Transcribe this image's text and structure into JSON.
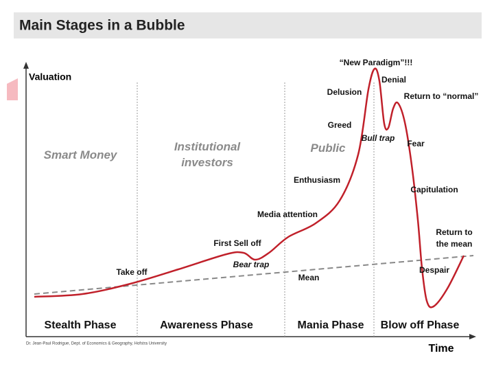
{
  "header": {
    "title": "Main Stages in a Bubble"
  },
  "axes": {
    "y_label": "Valuation",
    "x_label": "Time"
  },
  "groups": [
    {
      "lines": [
        "Smart Money"
      ]
    },
    {
      "lines": [
        "Institutional",
        "investors"
      ]
    },
    {
      "lines": [
        "Public"
      ]
    }
  ],
  "phases": [
    "Stealth Phase",
    "Awareness Phase",
    "Mania Phase",
    "Blow off Phase"
  ],
  "annotations": [
    {
      "lines": [
        "Take off"
      ]
    },
    {
      "lines": [
        "First Sell off"
      ]
    },
    {
      "lines": [
        "Bear trap"
      ]
    },
    {
      "lines": [
        "Media attention"
      ]
    },
    {
      "lines": [
        "Enthusiasm"
      ]
    },
    {
      "lines": [
        "Greed"
      ]
    },
    {
      "lines": [
        "Delusion"
      ]
    },
    {
      "lines": [
        "“New Paradigm”!!!"
      ]
    },
    {
      "lines": [
        "Denial"
      ]
    },
    {
      "lines": [
        "Return to “normal”"
      ]
    },
    {
      "lines": [
        "Bull trap"
      ]
    },
    {
      "lines": [
        "Fear"
      ]
    },
    {
      "lines": [
        "Capitulation"
      ]
    },
    {
      "lines": [
        "Return to",
        "the mean"
      ]
    },
    {
      "lines": [
        "Despair"
      ]
    },
    {
      "lines": [
        "Mean"
      ]
    }
  ],
  "credit": "Dr. Jean-Paul Rodrigue, Dept. of Economics & Geography, Hofstra University"
}
